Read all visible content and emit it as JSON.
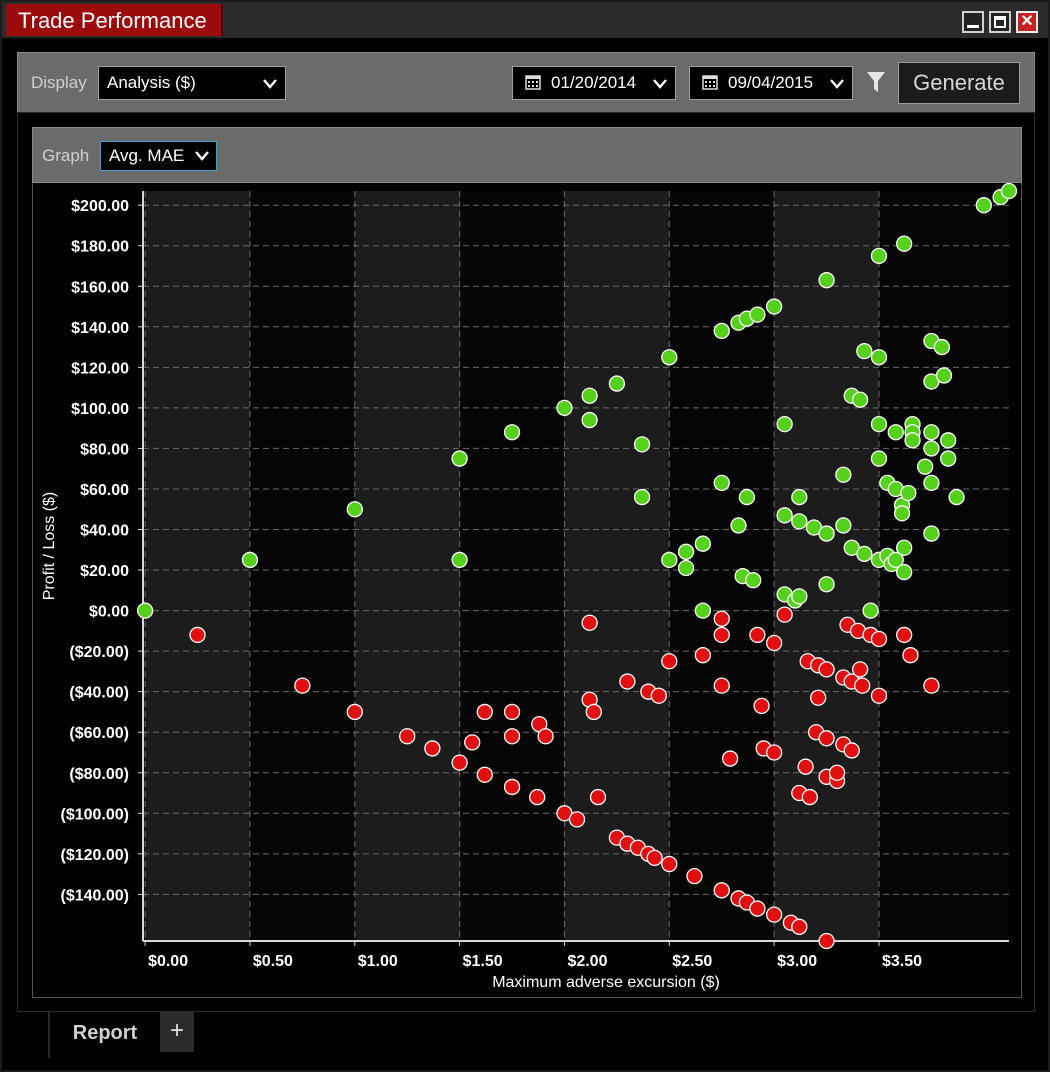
{
  "window": {
    "title": "Trade Performance"
  },
  "toolbar": {
    "display_label": "Display",
    "display_value": "Analysis ($)",
    "date_from": "01/20/2014",
    "date_to": "09/04/2015",
    "generate_label": "Generate"
  },
  "graph": {
    "label": "Graph",
    "value": "Avg. MAE"
  },
  "tabs": {
    "report_label": "Report",
    "add_label": "+"
  },
  "colors": {
    "win": "#55d01b",
    "loss": "#e01010",
    "title_tab": "#9b0b0b",
    "toolbar": "#6b6b6b"
  },
  "chart_data": {
    "type": "scatter",
    "title": "",
    "xlabel": "Maximum adverse excursion ($)",
    "ylabel": "Profit / Loss ($)",
    "xlim": [
      -0.01,
      4.12
    ],
    "ylim": [
      -163,
      207
    ],
    "x_ticks": [
      0,
      0.5,
      1,
      1.5,
      2,
      2.5,
      3,
      3.5
    ],
    "x_tick_labels": [
      "$0.00",
      "$0.50",
      "$1.00",
      "$1.50",
      "$2.00",
      "$2.50",
      "$3.00",
      "$3.50"
    ],
    "y_ticks": [
      200,
      180,
      160,
      140,
      120,
      100,
      80,
      60,
      40,
      20,
      0,
      -20,
      -40,
      -60,
      -80,
      -100,
      -120,
      -140
    ],
    "y_tick_labels": [
      "$200.00",
      "$180.00",
      "$160.00",
      "$140.00",
      "$120.00",
      "$100.00",
      "$80.00",
      "$60.00",
      "$40.00",
      "$20.00",
      "$0.00",
      "($20.00)",
      "($40.00)",
      "($60.00)",
      "($80.00)",
      "($100.00)",
      "($120.00)",
      "($140.00)"
    ],
    "grid": true,
    "series": [
      {
        "color": "#55d01b",
        "points": [
          [
            0,
            0
          ],
          [
            0.5,
            25
          ],
          [
            1,
            50
          ],
          [
            1.5,
            75
          ],
          [
            1.5,
            25
          ],
          [
            1.75,
            88
          ],
          [
            2,
            100
          ],
          [
            2.12,
            106
          ],
          [
            2.12,
            94
          ],
          [
            2.25,
            112
          ],
          [
            2.37,
            82
          ],
          [
            2.37,
            56
          ],
          [
            2.5,
            125
          ],
          [
            2.5,
            25
          ],
          [
            2.58,
            29
          ],
          [
            2.58,
            21
          ],
          [
            2.66,
            33
          ],
          [
            2.66,
            0
          ],
          [
            2.75,
            138
          ],
          [
            2.75,
            63
          ],
          [
            2.83,
            142
          ],
          [
            2.83,
            42
          ],
          [
            2.85,
            17
          ],
          [
            2.87,
            144
          ],
          [
            2.87,
            56
          ],
          [
            2.9,
            15
          ],
          [
            2.92,
            146
          ],
          [
            3,
            150
          ],
          [
            3.05,
            92
          ],
          [
            3.05,
            47
          ],
          [
            3.05,
            8
          ],
          [
            3.1,
            5
          ],
          [
            3.12,
            56
          ],
          [
            3.12,
            44
          ],
          [
            3.12,
            7
          ],
          [
            3.19,
            41
          ],
          [
            3.25,
            163
          ],
          [
            3.25,
            38
          ],
          [
            3.25,
            13
          ],
          [
            3.33,
            67
          ],
          [
            3.33,
            42
          ],
          [
            3.37,
            106
          ],
          [
            3.37,
            31
          ],
          [
            3.41,
            104
          ],
          [
            3.43,
            128
          ],
          [
            3.43,
            28
          ],
          [
            3.46,
            0
          ],
          [
            3.5,
            175
          ],
          [
            3.5,
            125
          ],
          [
            3.5,
            92
          ],
          [
            3.5,
            75
          ],
          [
            3.5,
            25
          ],
          [
            3.54,
            63
          ],
          [
            3.54,
            27
          ],
          [
            3.56,
            23
          ],
          [
            3.58,
            88
          ],
          [
            3.58,
            60
          ],
          [
            3.58,
            25
          ],
          [
            3.61,
            52
          ],
          [
            3.61,
            48
          ],
          [
            3.62,
            181
          ],
          [
            3.62,
            31
          ],
          [
            3.62,
            19
          ],
          [
            3.64,
            58
          ],
          [
            3.66,
            92
          ],
          [
            3.66,
            88
          ],
          [
            3.66,
            84
          ],
          [
            3.72,
            71
          ],
          [
            3.75,
            133
          ],
          [
            3.75,
            113
          ],
          [
            3.75,
            88
          ],
          [
            3.75,
            80
          ],
          [
            3.75,
            63
          ],
          [
            3.75,
            38
          ],
          [
            3.8,
            130
          ],
          [
            3.81,
            116
          ],
          [
            3.83,
            84
          ],
          [
            3.83,
            75
          ],
          [
            3.87,
            56
          ],
          [
            4,
            200
          ],
          [
            4.08,
            204
          ],
          [
            4.12,
            207
          ]
        ]
      },
      {
        "color": "#e01010",
        "points": [
          [
            0.25,
            -12
          ],
          [
            0.75,
            -37
          ],
          [
            1,
            -50
          ],
          [
            1.25,
            -62
          ],
          [
            1.37,
            -68
          ],
          [
            1.5,
            -75
          ],
          [
            1.56,
            -65
          ],
          [
            1.62,
            -50
          ],
          [
            1.62,
            -81
          ],
          [
            1.75,
            -50
          ],
          [
            1.75,
            -62
          ],
          [
            1.75,
            -87
          ],
          [
            1.87,
            -92
          ],
          [
            1.88,
            -56
          ],
          [
            1.91,
            -62
          ],
          [
            2,
            -100
          ],
          [
            2.06,
            -103
          ],
          [
            2.12,
            -6
          ],
          [
            2.12,
            -44
          ],
          [
            2.14,
            -50
          ],
          [
            2.16,
            -92
          ],
          [
            2.25,
            -112
          ],
          [
            2.3,
            -35
          ],
          [
            2.3,
            -115
          ],
          [
            2.35,
            -117
          ],
          [
            2.4,
            -40
          ],
          [
            2.4,
            -120
          ],
          [
            2.43,
            -122
          ],
          [
            2.45,
            -42
          ],
          [
            2.5,
            -25
          ],
          [
            2.5,
            -125
          ],
          [
            2.62,
            -131
          ],
          [
            2.66,
            -22
          ],
          [
            2.75,
            -4
          ],
          [
            2.75,
            -12
          ],
          [
            2.75,
            -37
          ],
          [
            2.75,
            -138
          ],
          [
            2.79,
            -73
          ],
          [
            2.83,
            -142
          ],
          [
            2.87,
            -144
          ],
          [
            2.92,
            -12
          ],
          [
            2.92,
            -147
          ],
          [
            2.94,
            -47
          ],
          [
            2.95,
            -68
          ],
          [
            3,
            -16
          ],
          [
            3,
            -70
          ],
          [
            3,
            -150
          ],
          [
            3.05,
            -2
          ],
          [
            3.08,
            -154
          ],
          [
            3.12,
            -90
          ],
          [
            3.12,
            -156
          ],
          [
            3.15,
            -77
          ],
          [
            3.16,
            -25
          ],
          [
            3.17,
            -92
          ],
          [
            3.2,
            -60
          ],
          [
            3.21,
            -27
          ],
          [
            3.21,
            -43
          ],
          [
            3.25,
            -29
          ],
          [
            3.25,
            -63
          ],
          [
            3.25,
            -82
          ],
          [
            3.25,
            -163
          ],
          [
            3.3,
            -84
          ],
          [
            3.3,
            -80
          ],
          [
            3.33,
            -66
          ],
          [
            3.33,
            -33
          ],
          [
            3.35,
            -7
          ],
          [
            3.37,
            -35
          ],
          [
            3.37,
            -69
          ],
          [
            3.4,
            -10
          ],
          [
            3.41,
            -29
          ],
          [
            3.42,
            -37
          ],
          [
            3.46,
            -12
          ],
          [
            3.5,
            -14
          ],
          [
            3.5,
            -42
          ],
          [
            3.62,
            -12
          ],
          [
            3.65,
            -22
          ],
          [
            3.75,
            -37
          ]
        ]
      }
    ]
  }
}
